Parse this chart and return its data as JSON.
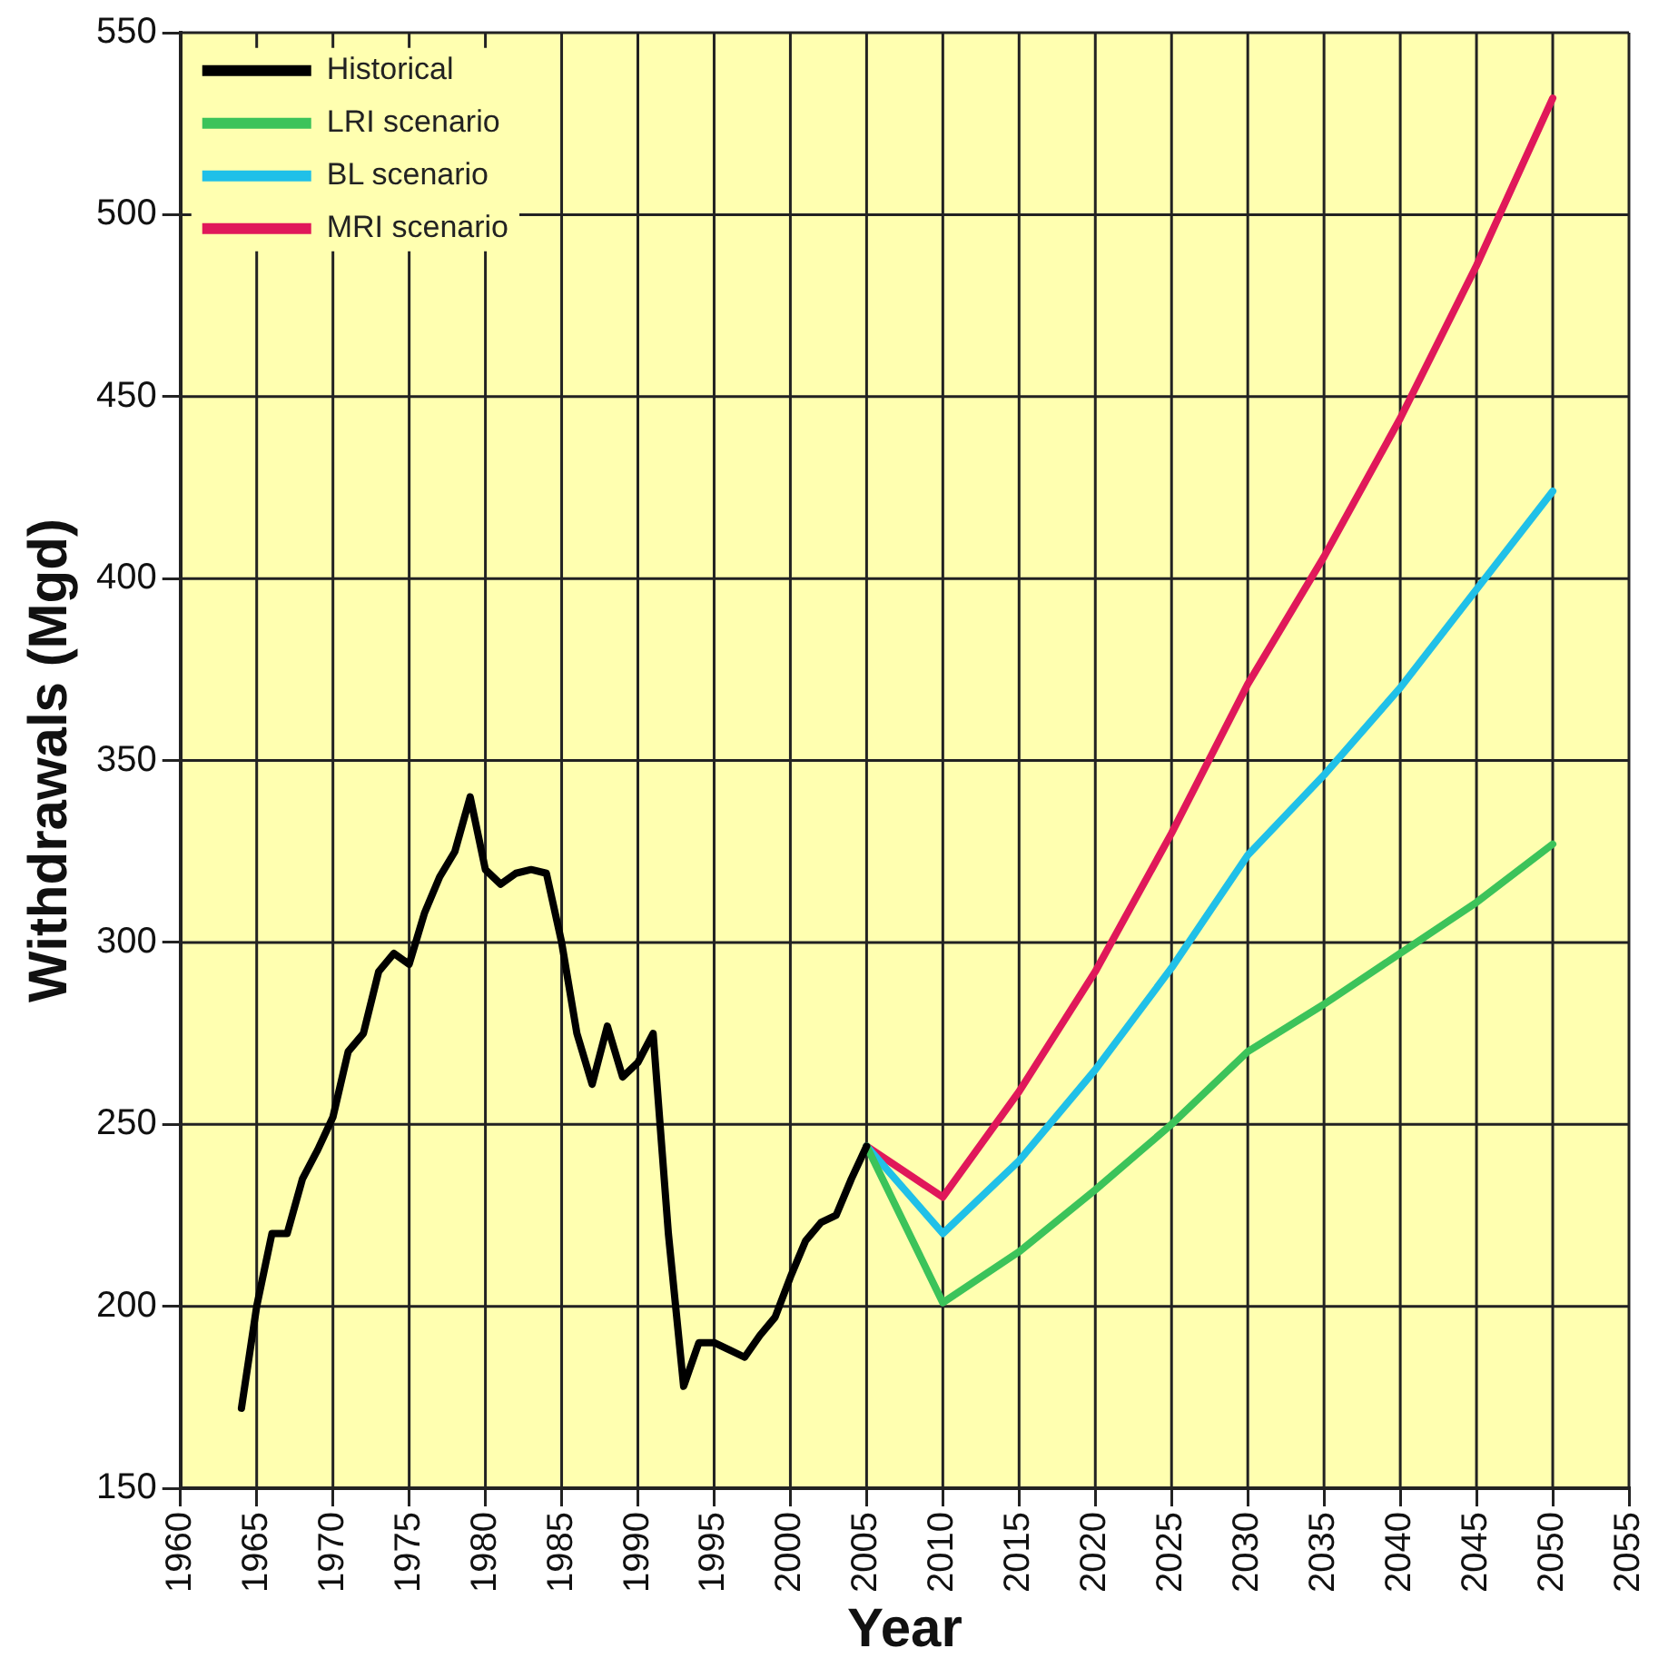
{
  "chart_data": {
    "type": "line",
    "xlabel": "Year",
    "ylabel": "Withdrawals (Mgd)",
    "xlim": [
      1960,
      2055
    ],
    "xticks": [
      1960,
      1965,
      1970,
      1975,
      1980,
      1985,
      1990,
      1995,
      2000,
      2005,
      2010,
      2015,
      2020,
      2025,
      2030,
      2035,
      2040,
      2045,
      2050,
      2055
    ],
    "ylim": [
      150,
      550
    ],
    "yticks": [
      150,
      200,
      250,
      300,
      350,
      400,
      450,
      500,
      550
    ],
    "grid": true,
    "legend": "top left",
    "marker": "none",
    "line_style": "solid",
    "series": [
      {
        "name": "Historical",
        "color": "#000000",
        "x": [
          1964,
          1965,
          1966,
          1967,
          1968,
          1969,
          1970,
          1971,
          1972,
          1973,
          1974,
          1975,
          1976,
          1977,
          1978,
          1979,
          1980,
          1981,
          1982,
          1983,
          1984,
          1985,
          1986,
          1987,
          1988,
          1989,
          1990,
          1991,
          1992,
          1993,
          1994,
          1995,
          1996,
          1997,
          1998,
          1999,
          2000,
          2001,
          2002,
          2003,
          2004,
          2005
        ],
        "values": [
          172,
          200,
          220,
          220,
          235,
          243,
          252,
          270,
          275,
          292,
          297,
          294,
          308,
          318,
          325,
          340,
          320,
          316,
          319,
          320,
          319,
          300,
          275,
          261,
          277,
          263,
          267,
          275,
          220,
          178,
          190,
          190,
          188,
          186,
          192,
          197,
          208,
          218,
          223,
          225,
          235,
          244
        ]
      },
      {
        "name": "LRI scenario",
        "color": "#3cc35a",
        "x": [
          2005,
          2010,
          2015,
          2020,
          2025,
          2030,
          2035,
          2040,
          2045,
          2050
        ],
        "values": [
          244,
          201,
          215,
          232,
          250,
          270,
          283,
          297,
          311,
          327
        ]
      },
      {
        "name": "BL scenario",
        "color": "#20c0e8",
        "x": [
          2005,
          2010,
          2015,
          2020,
          2025,
          2030,
          2035,
          2040,
          2045,
          2050
        ],
        "values": [
          244,
          220,
          240,
          265,
          293,
          324,
          346,
          370,
          397,
          424
        ]
      },
      {
        "name": "MRI scenario",
        "color": "#e0185a",
        "x": [
          2005,
          2010,
          2015,
          2020,
          2025,
          2030,
          2035,
          2040,
          2045,
          2050
        ],
        "values": [
          244,
          230,
          259,
          292,
          330,
          371,
          406,
          444,
          486,
          532
        ]
      }
    ]
  }
}
